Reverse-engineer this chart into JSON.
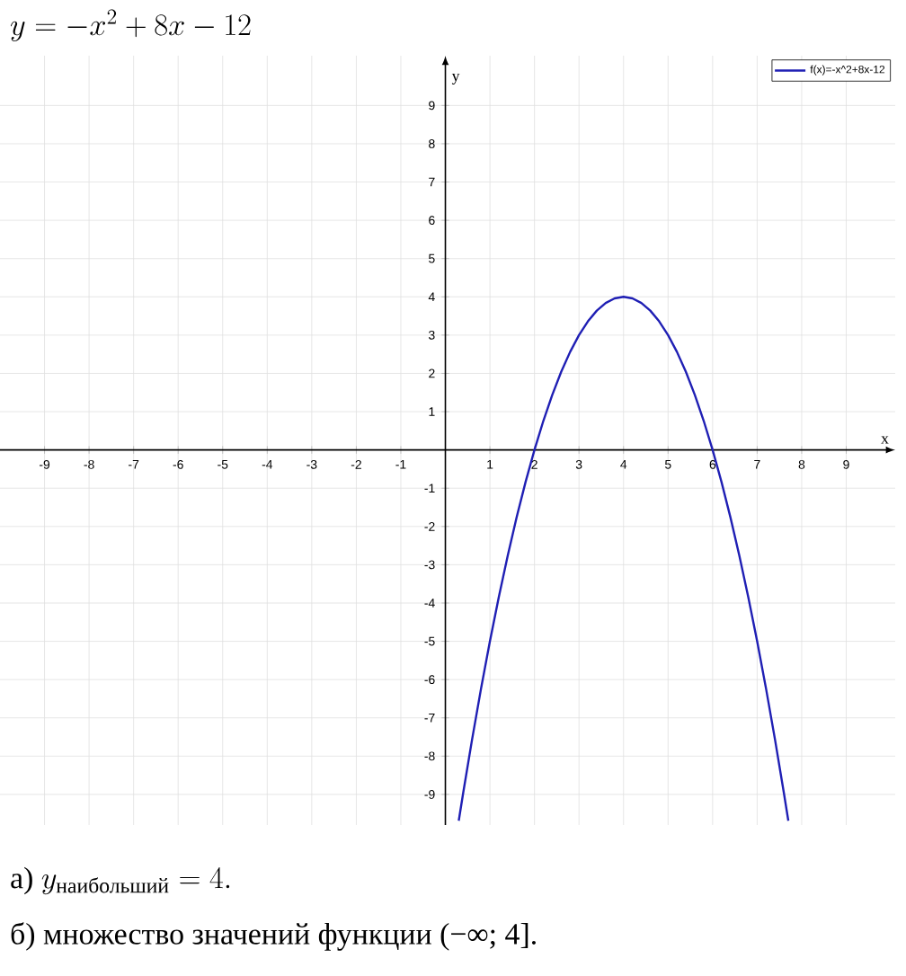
{
  "chart_data": {
    "type": "line",
    "title": "y = -x^{2} + 8x - 12",
    "xlabel": "x",
    "ylabel": "y",
    "x": [
      0.3,
      0.4,
      0.6,
      0.8,
      1,
      1.2,
      1.4,
      1.6,
      1.8,
      2,
      2.2,
      2.4,
      2.6,
      2.8,
      3,
      3.2,
      3.4,
      3.6,
      3.8,
      4,
      4.2,
      4.4,
      4.6,
      4.8,
      5,
      5.2,
      5.4,
      5.6,
      5.8,
      6,
      6.2,
      6.4,
      6.6,
      6.8,
      7,
      7.2,
      7.4,
      7.6,
      7.7
    ],
    "series": [
      {
        "name": "f(x)=-x^2+8x-12",
        "color": "#1f1fb4",
        "values": [
          -9.69,
          -8.96,
          -7.56,
          -6.24,
          -5,
          -3.84,
          -2.76,
          -1.76,
          -0.84,
          0,
          0.76,
          1.44,
          2.04,
          2.56,
          3,
          3.36,
          3.64,
          3.84,
          3.96,
          4,
          3.96,
          3.84,
          3.64,
          3.36,
          3,
          2.56,
          2.04,
          1.44,
          0.76,
          0,
          -0.84,
          -1.76,
          -2.76,
          -3.84,
          -5,
          -6.24,
          -7.56,
          -8.96,
          -9.69
        ]
      }
    ],
    "xlim": [
      -10,
      10.1
    ],
    "ylim": [
      -9.8,
      10.3
    ],
    "xticks": [
      -9,
      -8,
      -7,
      -6,
      -5,
      -4,
      -3,
      -2,
      -1,
      1,
      2,
      3,
      4,
      5,
      6,
      7,
      8,
      9
    ],
    "yticks": [
      -9,
      -8,
      -7,
      -6,
      -5,
      -4,
      -3,
      -2,
      -1,
      1,
      2,
      3,
      4,
      5,
      6,
      7,
      8,
      9
    ],
    "grid": true,
    "legend": "top right",
    "marker": "none",
    "line_style": "solid",
    "annotations": [
      "\\text{а) } y_{\\text{наибольший}} = 4.",
      "б) множество значений функции (−∞; 4]."
    ]
  }
}
